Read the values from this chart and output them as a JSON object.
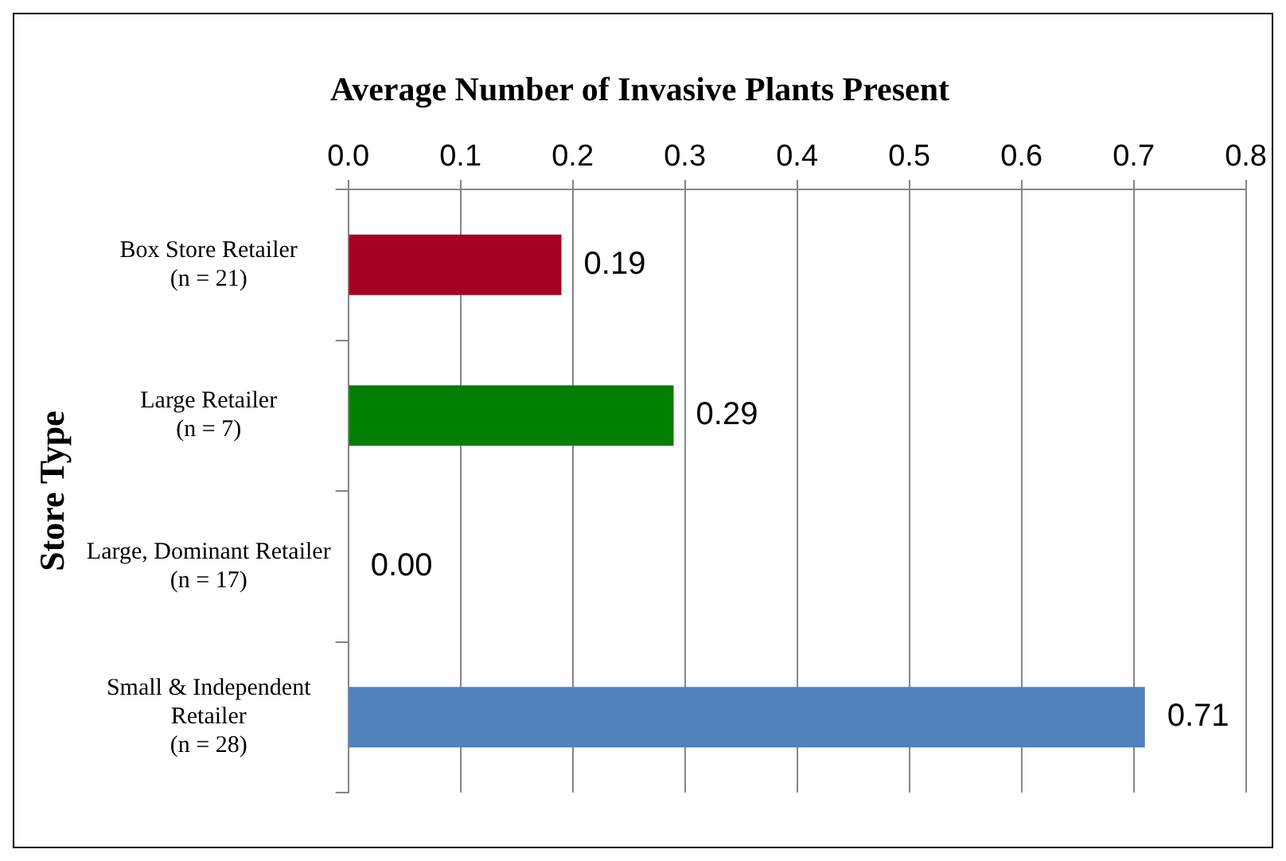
{
  "chart_data": {
    "type": "bar",
    "orientation": "horizontal",
    "title": "Average Number of Invasive Plants Present",
    "ylabel": "Store Type",
    "categories": [
      "Box Store Retailer\n(n = 21)",
      "Large Retailer\n(n = 7)",
      "Large, Dominant Retailer\n(n = 17)",
      "Small & Independent\nRetailer\n(n = 28)"
    ],
    "values": [
      0.19,
      0.29,
      0.0,
      0.71
    ],
    "colors": [
      "#a50021",
      "#008000",
      "#8064a2",
      "#4f81bd"
    ],
    "value_labels": [
      "0.19",
      "0.29",
      "0.00",
      "0.71"
    ],
    "xlim": [
      0,
      0.8
    ],
    "xticks": [
      {
        "value": 0,
        "label": "0.0"
      },
      0.1,
      0.2,
      0.3,
      0.4,
      0.5,
      0.6,
      0.7,
      0.8
    ],
    "grid": "x",
    "legend": false
  }
}
